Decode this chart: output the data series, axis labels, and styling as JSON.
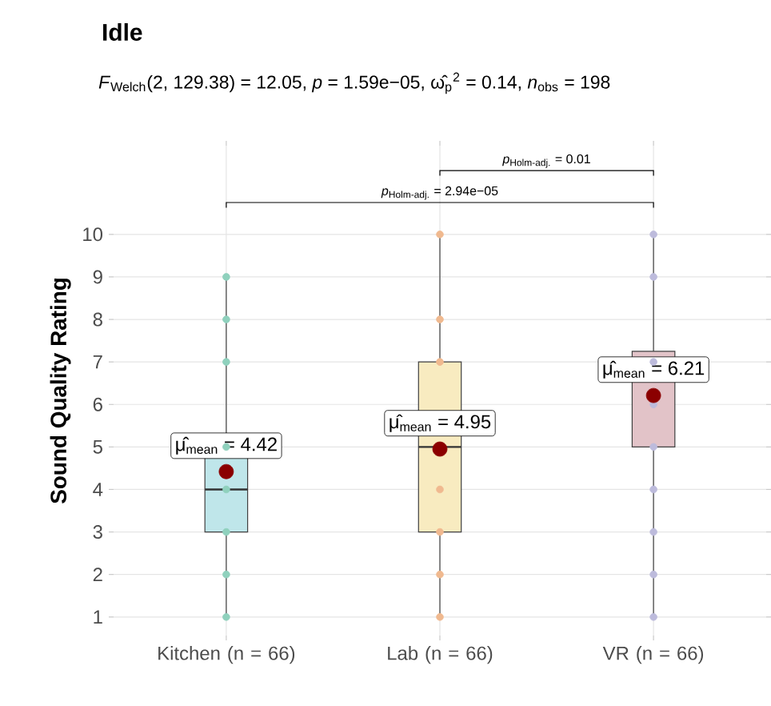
{
  "chart_data": {
    "type": "box",
    "title": "Idle",
    "subtitle": "*F*$_{Welch}$(2, 129.38) = 12.05, *p* = 1.59e−05, ω̂$_{p}$$^{2}$ = 0.14, *n*$_{obs}$ = 198",
    "ylabel": "Sound Quality Rating",
    "categories": [
      "Kitchen (n = 66)",
      "Lab (n = 66)",
      "VR (n = 66)"
    ],
    "boxes": [
      {
        "low": 1,
        "q1": 3,
        "median": 4,
        "q3": 5,
        "high": 9
      },
      {
        "low": 1,
        "q1": 3,
        "median": 5,
        "q3": 7,
        "high": 10
      },
      {
        "low": 1,
        "q1": 5,
        "median": 7,
        "q3": 7.25,
        "high": 10
      }
    ],
    "colors": [
      "#bfe6ea",
      "#f8ebc0",
      "#e2c3c8"
    ],
    "series": [
      {
        "type": "scatter",
        "color": "#8fd1bd",
        "x": [
          "Kitchen (n = 66)",
          "Kitchen (n = 66)",
          "Kitchen (n = 66)",
          "Kitchen (n = 66)",
          "Kitchen (n = 66)",
          "Kitchen (n = 66)",
          "Kitchen (n = 66)",
          "Kitchen (n = 66)"
        ],
        "values": [
          1,
          2,
          3,
          4,
          5,
          7,
          8,
          9
        ]
      },
      {
        "type": "scatter",
        "color": "#f0b98f",
        "x": [
          "Lab (n = 66)",
          "Lab (n = 66)",
          "Lab (n = 66)",
          "Lab (n = 66)",
          "Lab (n = 66)",
          "Lab (n = 66)",
          "Lab (n = 66)"
        ],
        "values": [
          1,
          2,
          3,
          4,
          7,
          8,
          10
        ]
      },
      {
        "type": "scatter",
        "color": "#bdbbdc",
        "x": [
          "VR (n = 66)",
          "VR (n = 66)",
          "VR (n = 66)",
          "VR (n = 66)",
          "VR (n = 66)",
          "VR (n = 66)",
          "VR (n = 66)",
          "VR (n = 66)",
          "VR (n = 66)"
        ],
        "values": [
          1,
          2,
          3,
          4,
          5,
          6,
          7,
          9,
          10
        ]
      },
      {
        "type": "scatter",
        "color": "#8b0000",
        "x": [
          "Kitchen (n = 66)",
          "Lab (n = 66)",
          "VR (n = 66)"
        ],
        "values": [
          4.42,
          4.95,
          6.21
        ],
        "value_labels": [
          "μ̂$_{mean}$ = 4.42",
          "μ̂$_{mean}$ = 4.95",
          "μ̂$_{mean}$ = 6.21"
        ]
      }
    ],
    "annotations": [
      "*p*$_{Holm-adj.}$ = 2.94e−05",
      "*p*$_{Holm-adj.}$ = 0.01"
    ],
    "ylim": [
      0.45,
      12.2
    ],
    "yticks": [
      1,
      2,
      3,
      4,
      5,
      6,
      7,
      8,
      9,
      10
    ],
    "grid": true,
    "marker": "circle"
  }
}
